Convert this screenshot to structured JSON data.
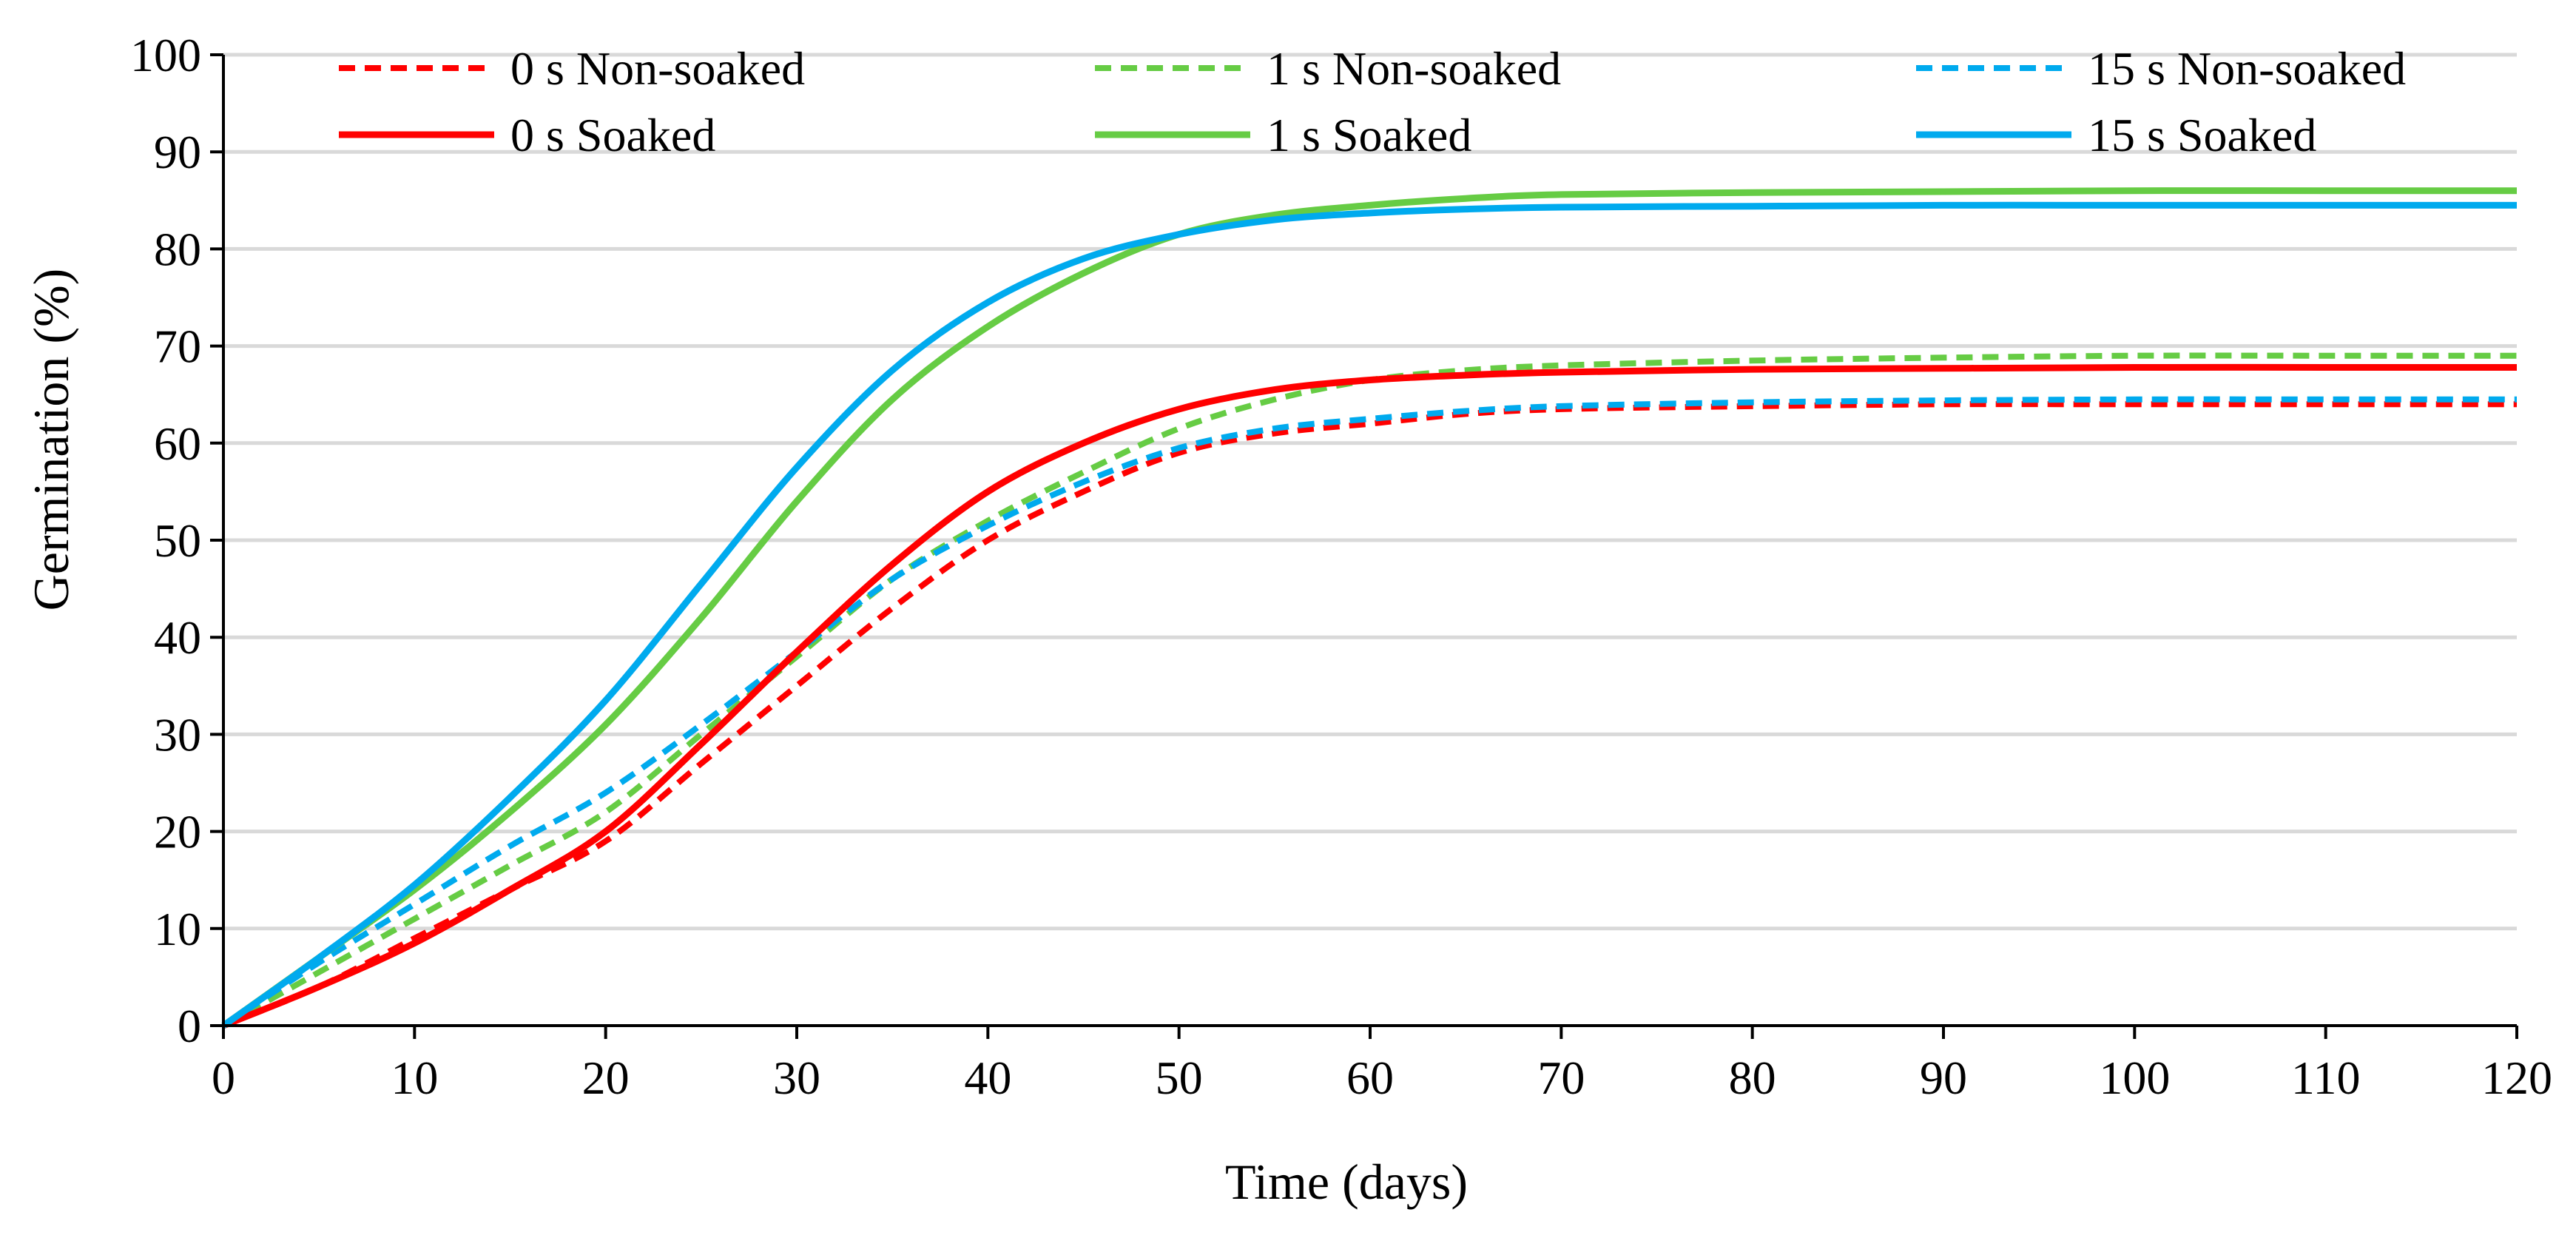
{
  "chart_data": {
    "type": "line",
    "title": "",
    "xlabel": "Time (days)",
    "ylabel": "Germination (%)",
    "xlim": [
      0,
      120
    ],
    "ylim": [
      0,
      100
    ],
    "xticks": [
      0,
      10,
      20,
      30,
      40,
      50,
      60,
      70,
      80,
      90,
      100,
      110,
      120
    ],
    "yticks": [
      0,
      10,
      20,
      30,
      40,
      50,
      60,
      70,
      80,
      90,
      100
    ],
    "grid": "horizontal",
    "legend_position": "top",
    "x": [
      0,
      5,
      10,
      15,
      20,
      25,
      30,
      35,
      40,
      45,
      50,
      55,
      60,
      65,
      70,
      80,
      90,
      100,
      110,
      120
    ],
    "series": [
      {
        "name": "0 s Non-soaked",
        "color": "#ff0000",
        "style": "dashed",
        "values": [
          0,
          4,
          9,
          14,
          19,
          27,
          35,
          43,
          50,
          55,
          59,
          61,
          62,
          63,
          63.5,
          63.8,
          64,
          64,
          64,
          64
        ]
      },
      {
        "name": "1 s Non-soaked",
        "color": "#66cc44",
        "style": "dashed",
        "values": [
          0,
          5.5,
          11,
          16.5,
          22,
          30,
          38,
          46,
          52,
          57,
          61.5,
          64.5,
          66.5,
          67.5,
          68,
          68.5,
          68.8,
          69,
          69,
          69
        ]
      },
      {
        "name": "15 s Non-soaked",
        "color": "#00aaee",
        "style": "dashed",
        "values": [
          0,
          6.5,
          12.5,
          18.5,
          24,
          31,
          38.5,
          46,
          51.5,
          56,
          59.5,
          61.5,
          62.5,
          63.3,
          63.8,
          64.2,
          64.4,
          64.5,
          64.5,
          64.5
        ]
      },
      {
        "name": "0 s Soaked",
        "color": "#ff0000",
        "style": "solid",
        "values": [
          0,
          4,
          8.5,
          14,
          20,
          29,
          38.5,
          47.5,
          55,
          60,
          63.5,
          65.5,
          66.5,
          67,
          67.3,
          67.6,
          67.7,
          67.8,
          67.8,
          67.8
        ]
      },
      {
        "name": "1 s  Soaked",
        "color": "#66cc44",
        "style": "solid",
        "values": [
          0,
          7,
          14,
          22,
          31,
          42,
          54,
          64.5,
          72,
          77.5,
          81.5,
          83.5,
          84.5,
          85.2,
          85.6,
          85.8,
          85.9,
          86,
          86,
          86
        ]
      },
      {
        "name": "15 s  Soaked",
        "color": "#00aaee",
        "style": "solid",
        "values": [
          0,
          7,
          14.5,
          23.5,
          33.5,
          45.5,
          57.5,
          67.5,
          74.5,
          79,
          81.5,
          83,
          83.7,
          84.1,
          84.3,
          84.4,
          84.5,
          84.5,
          84.5,
          84.5
        ]
      }
    ]
  }
}
